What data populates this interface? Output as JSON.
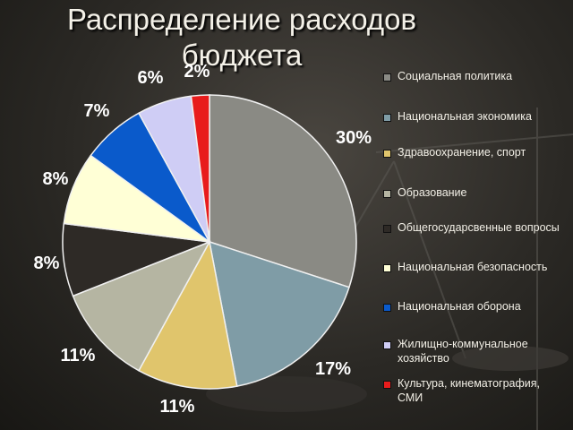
{
  "title_line1": "Распределение расходов",
  "title_line2": "бюджета",
  "chart_data": {
    "type": "pie",
    "title": "Распределение расходов бюджета",
    "legend_position": "right",
    "slices": [
      {
        "label": "Социальная политика",
        "value": 30,
        "display": "30%",
        "color": "#8a8a84"
      },
      {
        "label": "Национальная экономика",
        "value": 17,
        "display": "17%",
        "color": "#7f9ca6"
      },
      {
        "label": "Здравоохранение, спорт",
        "value": 11,
        "display": "11%",
        "color": "#e0c56c"
      },
      {
        "label": "Образование",
        "value": 11,
        "display": "11%",
        "color": "#b5b5a2"
      },
      {
        "label": "Общегосударсвенные вопросы",
        "value": 8,
        "display": "8%",
        "color": "#2e2a26"
      },
      {
        "label": "Национальная безопасность",
        "value": 8,
        "display": "8%",
        "color": "#ffffd6"
      },
      {
        "label": "Национальная оборона",
        "value": 7,
        "display": "7%",
        "color": "#0a5acb"
      },
      {
        "label": "Жилищно-коммунальное хозяйство",
        "value": 6,
        "display": "6%",
        "color": "#cfcdf5"
      },
      {
        "label": "Культура, кинематография, СМИ",
        "value": 2,
        "display": "2%",
        "color": "#e81c1c"
      }
    ]
  }
}
